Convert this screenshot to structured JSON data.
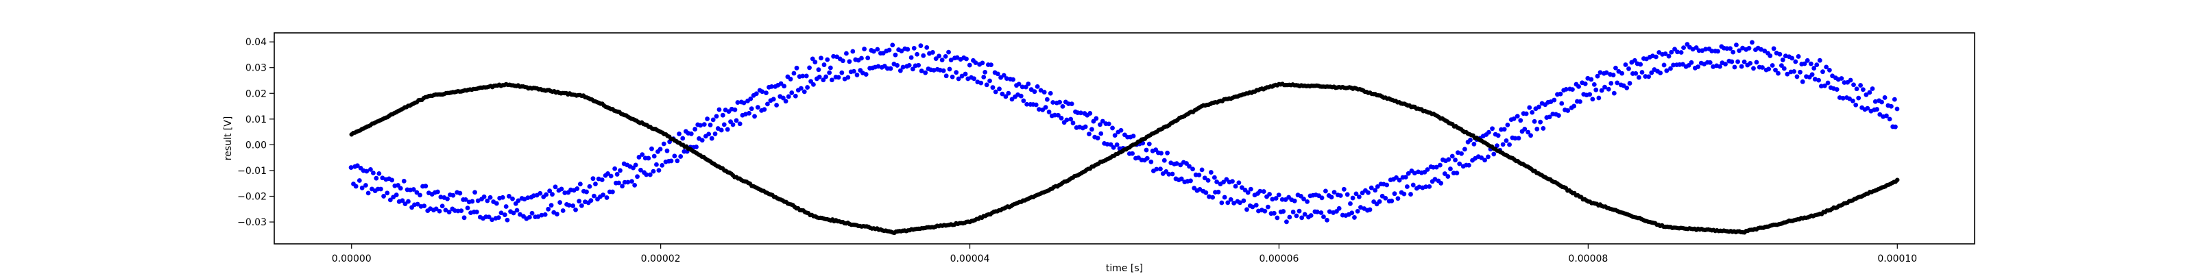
{
  "chart_data": {
    "type": "scatter",
    "title": "",
    "xlabel": "time [s]",
    "ylabel": "result [V]",
    "xlim": [
      -5e-06,
      0.000105
    ],
    "ylim": [
      -0.0385,
      0.0435
    ],
    "grid": false,
    "legend": "none",
    "x_ticks": [
      0,
      2e-05,
      4e-05,
      6e-05,
      8e-05,
      0.0001
    ],
    "x_tick_labels": [
      "0.00000",
      "0.00002",
      "0.00004",
      "0.00006",
      "0.00008",
      "0.00010"
    ],
    "y_ticks": [
      -0.03,
      -0.02,
      -0.01,
      0.0,
      0.01,
      0.02,
      0.03,
      0.04
    ],
    "y_tick_labels": [
      "−0.03",
      "−0.02",
      "−0.01",
      "0.00",
      "0.01",
      "0.02",
      "0.03",
      "0.04"
    ],
    "series": [
      {
        "color": "#000000",
        "marker": "dense dots",
        "x": [
          0,
          5e-06,
          1e-05,
          1.5e-05,
          2e-05,
          2.5e-05,
          3e-05,
          3.5e-05,
          4e-05,
          4.5e-05,
          5e-05,
          5.5e-05,
          6e-05,
          6.5e-05,
          7e-05,
          7.5e-05,
          8e-05,
          8.5e-05,
          9e-05,
          9.5e-05,
          0.0001
        ],
        "y": [
          0.004,
          0.019,
          0.0235,
          0.019,
          0.005,
          -0.013,
          -0.028,
          -0.034,
          -0.03,
          -0.018,
          -0.002,
          0.015,
          0.0235,
          0.022,
          0.012,
          -0.005,
          -0.022,
          -0.032,
          -0.034,
          -0.027,
          -0.014
        ]
      },
      {
        "color": "#0000ff",
        "marker": "noisy double-band dots",
        "x": [
          0,
          5e-06,
          1e-05,
          1.5e-05,
          2e-05,
          2.5e-05,
          3e-05,
          3.5e-05,
          4e-05,
          4.5e-05,
          5e-05,
          5.5e-05,
          6e-05,
          6.5e-05,
          7e-05,
          7.5e-05,
          8e-05,
          8.5e-05,
          9e-05,
          9.5e-05,
          0.0001
        ],
        "y": [
          -0.012,
          -0.022,
          -0.025,
          -0.02,
          -0.005,
          0.013,
          0.028,
          0.034,
          0.03,
          0.016,
          0.001,
          -0.015,
          -0.024,
          -0.023,
          -0.011,
          0.005,
          0.022,
          0.033,
          0.035,
          0.028,
          0.011
        ]
      }
    ]
  }
}
